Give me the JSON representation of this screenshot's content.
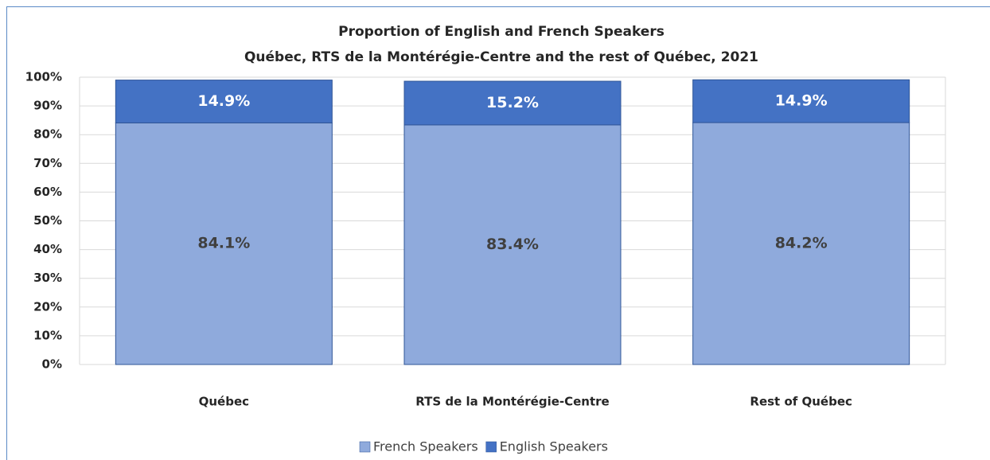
{
  "chart_data": {
    "type": "stacked_bar",
    "title": "Proportion of English and French Speakers",
    "subtitle": "Québec, RTS de la Montérégie-Centre and the rest of Québec, 2021",
    "categories": [
      "Québec",
      "RTS de la Montérégie-Centre",
      "Rest of Québec"
    ],
    "series": [
      {
        "name": "French Speakers",
        "color": "#8faadc",
        "values": [
          84.1,
          83.4,
          84.2
        ],
        "value_labels": [
          "84.1%",
          "83.4%",
          "84.2%"
        ]
      },
      {
        "name": "English Speakers",
        "color": "#4472c4",
        "values": [
          14.9,
          15.2,
          14.9
        ],
        "value_labels": [
          "14.9%",
          "15.2%",
          "14.9%"
        ]
      }
    ],
    "ylim": [
      0,
      100
    ],
    "yticks": [
      {
        "value": 0,
        "label": "0%"
      },
      {
        "value": 10,
        "label": "10%"
      },
      {
        "value": 20,
        "label": "20%"
      },
      {
        "value": 30,
        "label": "30%"
      },
      {
        "value": 40,
        "label": "40%"
      },
      {
        "value": 50,
        "label": "50%"
      },
      {
        "value": 60,
        "label": "60%"
      },
      {
        "value": 70,
        "label": "70%"
      },
      {
        "value": 80,
        "label": "80%"
      },
      {
        "value": 90,
        "label": "90%"
      },
      {
        "value": 100,
        "label": "100%"
      }
    ],
    "grid": true,
    "legend": "bottom"
  }
}
